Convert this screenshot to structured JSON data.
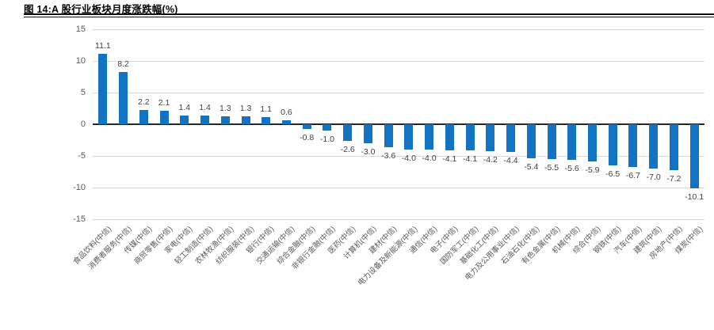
{
  "figure": {
    "title": "图 14:A 股行业板块月度涨跌幅(%)"
  },
  "chart_data": {
    "type": "bar",
    "title": "图 14:A 股行业板块月度涨跌幅(%)",
    "categories": [
      "食品饮料(中信)",
      "消费者服务(中信)",
      "传媒(中信)",
      "商贸零售(中信)",
      "家电(中信)",
      "轻工制造(中信)",
      "农林牧渔(中信)",
      "纺织服装(中信)",
      "银行(中信)",
      "交通运输(中信)",
      "综合金融(中信)",
      "非银行金融(中信)",
      "医药(中信)",
      "计算机(中信)",
      "建材(中信)",
      "电力设备及新能源(中信)",
      "通信(中信)",
      "电子(中信)",
      "国防军工(中信)",
      "基础化工(中信)",
      "电力及公用事业(中信)",
      "石油石化(中信)",
      "有色金属(中信)",
      "机械(中信)",
      "综合(中信)",
      "钢铁(中信)",
      "汽车(中信)",
      "建筑(中信)",
      "房地产(中信)",
      "煤炭(中信)"
    ],
    "values": [
      11.1,
      8.2,
      2.2,
      2.1,
      1.4,
      1.4,
      1.3,
      1.3,
      1.1,
      0.6,
      -0.8,
      -1.0,
      -2.6,
      -3.0,
      -3.6,
      -4.0,
      -4.0,
      -4.1,
      -4.1,
      -4.2,
      -4.4,
      -5.4,
      -5.5,
      -5.6,
      -5.9,
      -6.5,
      -6.7,
      -7.0,
      -7.2,
      -10.1
    ],
    "value_label_decimals": 1,
    "xlabel": "",
    "ylabel": "",
    "ylim": [
      -15,
      15
    ],
    "yticks": [
      15,
      10,
      5,
      0,
      -5,
      -10,
      -15
    ],
    "grid": true,
    "legend": "none",
    "data_labels": "outside-end",
    "x_label_rotation_deg": 45,
    "colors": {
      "bar": "#1173C2",
      "gridline": "#d9d9d9",
      "zero_axis": "#262626",
      "tick_text": "#595959",
      "value_text": "#3f3f3f"
    }
  }
}
